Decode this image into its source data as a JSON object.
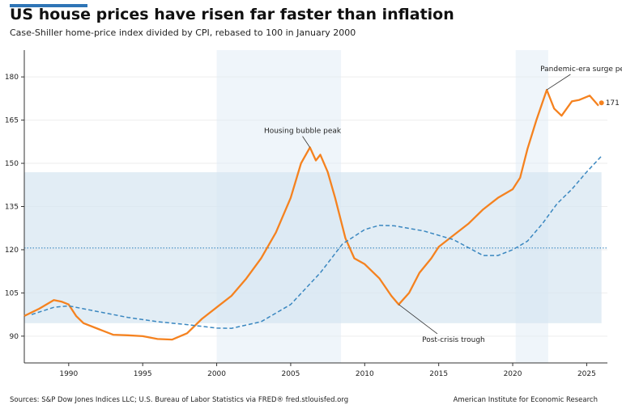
{
  "title": "US house prices have risen far faster than inflation",
  "subtitle": "Case-Shiller home-price index divided by CPI, rebased to 100 in January 2000",
  "source": "Sources: S&P Dow Jones Indices LLC; U.S. Bureau of Labor Statistics via FRED® fred.stlouisfed.org",
  "organization": "American Institute for Economic Research",
  "colors": {
    "accent": "#2e75b6",
    "real_price": "#f5821f",
    "trend": "#3a87c0",
    "shade": "#dce9f4",
    "band": "#d5e5f1"
  },
  "chart_data": {
    "type": "line",
    "xlim": [
      1987,
      2026.4
    ],
    "ylim": [
      80.7,
      189.3
    ],
    "x_ticks": [
      1990,
      1995,
      2000,
      2005,
      2010,
      2015,
      2020,
      2025
    ],
    "y_ticks": [
      90,
      105,
      120,
      135,
      150,
      165,
      180
    ],
    "grid": "horizontal",
    "shaded_periods": [
      [
        2000,
        2008.4
      ],
      [
        2020.2,
        2022.4
      ]
    ],
    "band": {
      "y_range": [
        94.5,
        146.9
      ],
      "x_range": [
        1987,
        2026
      ]
    },
    "reference_line": 120.6,
    "series": [
      {
        "style": "solid-orange",
        "points": [
          [
            1987,
            97
          ],
          [
            1988,
            99.5
          ],
          [
            1989,
            102.5
          ],
          [
            1989.5,
            102
          ],
          [
            1990,
            101
          ],
          [
            1990.5,
            97
          ],
          [
            1991,
            94.5
          ],
          [
            1992,
            92.5
          ],
          [
            1993,
            90.5
          ],
          [
            1994,
            90.3
          ],
          [
            1995,
            90
          ],
          [
            1996,
            89
          ],
          [
            1997,
            88.8
          ],
          [
            1998,
            91
          ],
          [
            1999,
            96
          ],
          [
            2000,
            100
          ],
          [
            2001,
            104
          ],
          [
            2002,
            110
          ],
          [
            2003,
            117
          ],
          [
            2004,
            126
          ],
          [
            2005,
            138
          ],
          [
            2005.7,
            150
          ],
          [
            2006.3,
            155.5
          ],
          [
            2006.7,
            151
          ],
          [
            2007,
            153
          ],
          [
            2007.5,
            147
          ],
          [
            2008,
            138
          ],
          [
            2008.7,
            124
          ],
          [
            2009.3,
            117
          ],
          [
            2010,
            115
          ],
          [
            2011,
            110
          ],
          [
            2011.8,
            104
          ],
          [
            2012.3,
            101
          ],
          [
            2013,
            105
          ],
          [
            2013.7,
            112
          ],
          [
            2014.5,
            117
          ],
          [
            2015,
            121
          ],
          [
            2016,
            125
          ],
          [
            2017,
            129
          ],
          [
            2018,
            134
          ],
          [
            2019,
            138
          ],
          [
            2020,
            141
          ],
          [
            2020.5,
            145
          ],
          [
            2021,
            155
          ],
          [
            2021.6,
            165
          ],
          [
            2022.3,
            175.5
          ],
          [
            2022.8,
            169
          ],
          [
            2023.3,
            166.5
          ],
          [
            2024,
            171.5
          ],
          [
            2024.5,
            172
          ],
          [
            2025.2,
            173.5
          ],
          [
            2025.8,
            170
          ]
        ]
      },
      {
        "style": "dashed-blue",
        "points": [
          [
            1987.5,
            97.5
          ],
          [
            1989,
            100
          ],
          [
            1990,
            100.5
          ],
          [
            1992,
            98.5
          ],
          [
            1994,
            96.5
          ],
          [
            1996,
            95
          ],
          [
            1998,
            94
          ],
          [
            2000,
            92.8
          ],
          [
            2001,
            92.7
          ],
          [
            2003,
            95
          ],
          [
            2005,
            101
          ],
          [
            2007,
            112
          ],
          [
            2008.5,
            122
          ],
          [
            2010,
            127
          ],
          [
            2011,
            128.5
          ],
          [
            2012,
            128.3
          ],
          [
            2014,
            126.5
          ],
          [
            2016,
            123.5
          ],
          [
            2018,
            118
          ],
          [
            2019,
            118
          ],
          [
            2020,
            120
          ],
          [
            2021,
            123
          ],
          [
            2022,
            129
          ],
          [
            2023,
            136
          ],
          [
            2024,
            141
          ],
          [
            2025,
            147
          ],
          [
            2026,
            152.5
          ]
        ]
      }
    ],
    "end_point": {
      "x": 2026,
      "y": 171,
      "label": "171"
    },
    "annotations": [
      {
        "text": "Housing bubble peak",
        "x": 2006.3,
        "y": 155.5,
        "tx": 2005.8,
        "ty": 160.5
      },
      {
        "text": "Post-crisis trough",
        "x": 2012.3,
        "y": 101,
        "tx": 2016,
        "ty": 88
      },
      {
        "text": "Pandemic-era surge peak",
        "x": 2022.3,
        "y": 175.5,
        "tx": 2025,
        "ty": 182
      }
    ]
  }
}
